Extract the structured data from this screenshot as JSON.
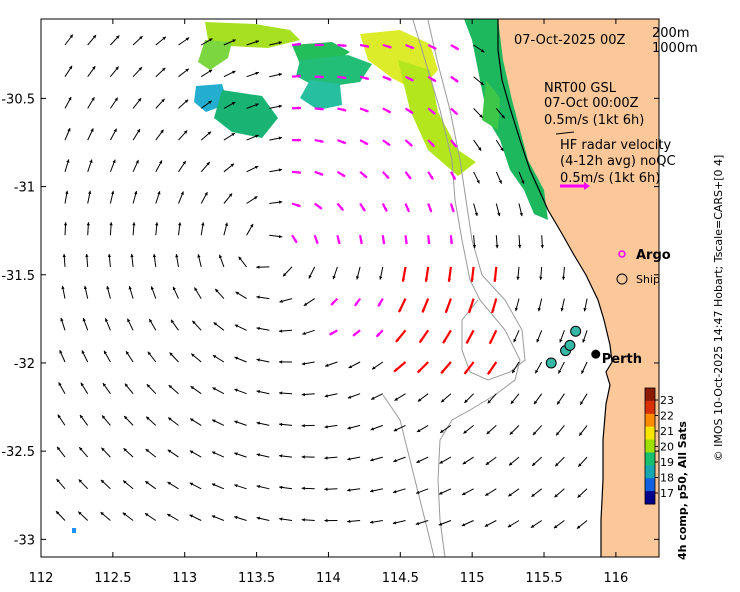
{
  "map": {
    "date_label": "07-Oct-2025 00Z",
    "depth_labels": [
      "200m",
      "1000m"
    ],
    "lon_ticks": [
      "112",
      "112.5",
      "113",
      "113.5",
      "114",
      "114.5",
      "115",
      "115.5",
      "116"
    ],
    "lat_ticks": [
      "-30.5",
      "-31",
      "-31.5",
      "-32",
      "-32.5",
      "-33"
    ],
    "lon_range": [
      112,
      116.3
    ],
    "lat_range": [
      -33.1,
      -30.05
    ],
    "colors": {
      "land": "#fcc89a",
      "current_arrow": "#000000",
      "hf_radar_arrow": "#ff00ff",
      "fast_arrow": "#ff0000",
      "isobath": "#9a9a9a",
      "ship": "#35b7a5"
    }
  },
  "legend": {
    "station_block": [
      "NRT00 GSL",
      "07-Oct 00:00Z",
      "0.5m/s (1kt 6h)"
    ],
    "radar_block": [
      "HF radar velocity",
      "(4-12h avg) noQC",
      "0.5m/s (1kt 6h)"
    ],
    "argo_label": "Argo",
    "ship_label": "Ship"
  },
  "city": {
    "name": "Perth",
    "lon": 115.86,
    "lat": -31.95
  },
  "ships": [
    {
      "lon": 115.55,
      "lat": -32.0
    },
    {
      "lon": 115.65,
      "lat": -31.93
    },
    {
      "lon": 115.68,
      "lat": -31.9
    },
    {
      "lon": 115.72,
      "lat": -31.82
    }
  ],
  "colorbar": {
    "title": "4h comp, p50, All Sats",
    "ticks": [
      "23",
      "22",
      "21",
      "20",
      "19",
      "18",
      "17"
    ],
    "colors": [
      "#8b1a00",
      "#d83000",
      "#ff8c00",
      "#f6e600",
      "#9fe000",
      "#16c06e",
      "#16a7b0",
      "#1060e0",
      "#00008b"
    ]
  },
  "credit": "© IMOS 10-Oct-2025 14:47 Hobart; Tscale=CARS+[0 4]"
}
